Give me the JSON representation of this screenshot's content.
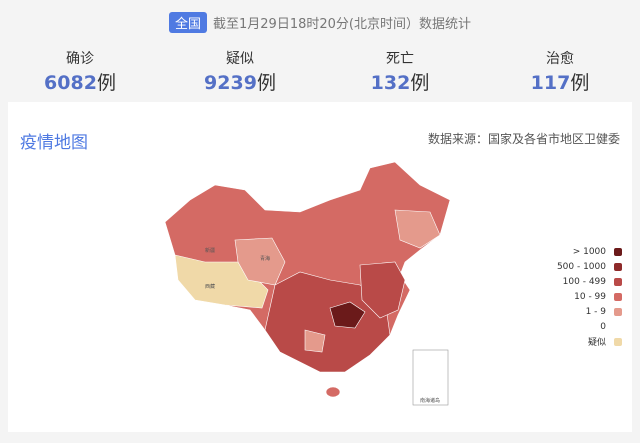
{
  "header": {
    "scope_badge": "全国",
    "caption": "截至1月29日18时20分(北京时间）数据统计"
  },
  "stats": [
    {
      "label": "确诊",
      "value": "6082",
      "unit": "例"
    },
    {
      "label": "疑似",
      "value": "9239",
      "unit": "例"
    },
    {
      "label": "死亡",
      "value": "132",
      "unit": "例"
    },
    {
      "label": "治愈",
      "value": "117",
      "unit": "例"
    }
  ],
  "map": {
    "title": "疫情地图",
    "source": "数据来源：国家及各省市地区卫健委",
    "labels": {
      "xinjiang": "新疆",
      "xizang": "西藏",
      "qinghai": "青海",
      "nanhai": "南海诸岛"
    },
    "legend": [
      {
        "label": "> 1000",
        "color": "#6b1a1a"
      },
      {
        "label": "500 - 1000",
        "color": "#8e2a2a"
      },
      {
        "label": "100 - 499",
        "color": "#b94a48"
      },
      {
        "label": "10 - 99",
        "color": "#d46a64"
      },
      {
        "label": "1 - 9",
        "color": "#e49a8c"
      },
      {
        "label": "0",
        "color": "#ffffff"
      },
      {
        "label": "疑似",
        "color": "#f0d9a8"
      }
    ]
  }
}
